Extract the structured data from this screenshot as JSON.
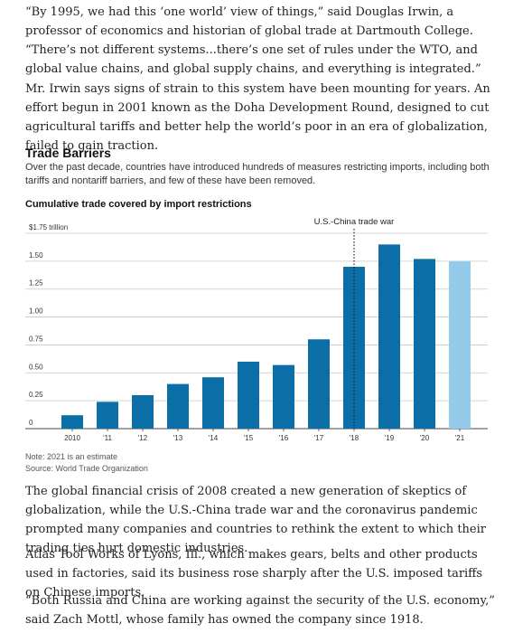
{
  "article": {
    "paragraphs": [
      "“By 1995, we had this ‘one world’ view of things,” said Douglas Irwin, a professor of economics and historian of global trade at Dartmouth College. “There’s not different systems...there’s one set of rules under the WTO, and global value chains, and global supply chains, and everything is integrated.”",
      "Mr. Irwin says signs of strain to this system have been mounting for years. An effort begun in 2001 known as the Doha Development Round, designed to cut agricultural tariffs and better help the world’s poor in an era of globalization, failed to gain traction.",
      "The global financial crisis of 2008 created a new generation of skeptics of globalization, while the U.S.-China trade war and the coronavirus pandemic prompted many companies and countries to rethink the extent to which their trading ties hurt domestic industries.",
      "Atlas Tool Works of Lyons, Ill., which makes gears, belts and other products used in factories, said its business rose sharply after the U.S. imposed tariffs on Chinese imports.",
      "“Both Russia and China are working against the security of the U.S. economy,” said Zach Mottl, whose family has owned the company since 1918."
    ]
  },
  "figure": {
    "title": "Trade Barriers",
    "description": "Over the past decade, countries have introduced hundreds of measures restricting imports, including both tariffs and nontariff barriers, and few of these have been removed.",
    "chart_heading": "Cumulative trade covered by import restrictions",
    "note": "Note: 2021 is an estimate",
    "source": "Source: World Trade Organization"
  },
  "chart_data": {
    "type": "bar",
    "categories": [
      "2010",
      "'11",
      "'12",
      "'13",
      "'14",
      "'15",
      "'16",
      "'17",
      "'18",
      "'19",
      "'20",
      "'21"
    ],
    "values": [
      0.12,
      0.24,
      0.3,
      0.4,
      0.46,
      0.6,
      0.57,
      0.8,
      1.45,
      1.65,
      1.52,
      1.5
    ],
    "y_ticks": [
      {
        "value": 0,
        "label": "0"
      },
      {
        "value": 0.25,
        "label": "0.25"
      },
      {
        "value": 0.5,
        "label": "0.50"
      },
      {
        "value": 0.75,
        "label": "0.75"
      },
      {
        "value": 1.0,
        "label": "1.00"
      },
      {
        "value": 1.25,
        "label": "1.25"
      },
      {
        "value": 1.5,
        "label": "1.50"
      },
      {
        "value": 1.75,
        "label": "$1.75 trillion"
      }
    ],
    "ylim": [
      0,
      1.75
    ],
    "grid": true,
    "annotation": {
      "label": "U.S.-China trade war",
      "category": "'18"
    },
    "estimate_category": "'21",
    "colors": {
      "bar": "#0b6ea6",
      "estimate": "#95cbea",
      "grid": "#c8c8c8",
      "annotation": "#222222"
    }
  }
}
